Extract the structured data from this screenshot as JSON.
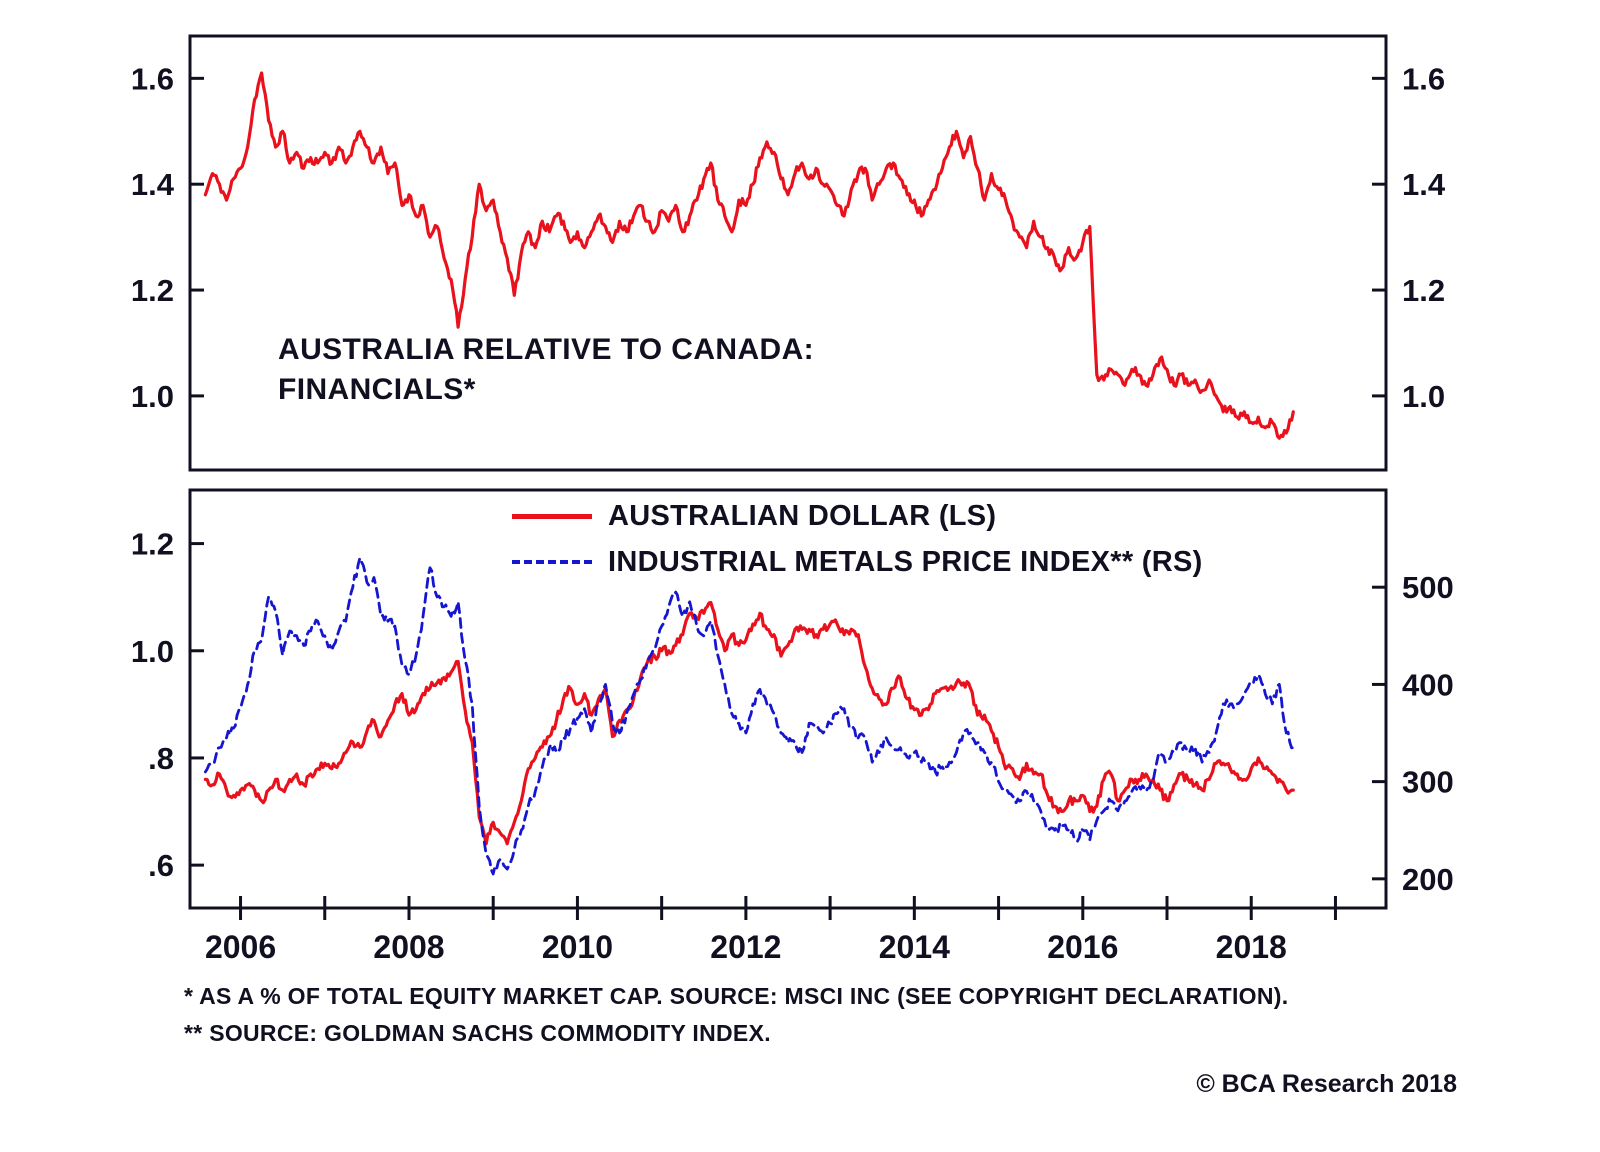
{
  "colors": {
    "red": "#e8111c",
    "blue": "#1616d0",
    "frame": "#101020",
    "text": "#101020"
  },
  "top_panel": {
    "title_line1": "AUSTRALIA RELATIVE TO CANADA:",
    "title_line2": "FINANCIALS*"
  },
  "legend": {
    "items": [
      {
        "label": "AUSTRALIAN DOLLAR (LS)",
        "style": "solid",
        "color": "#e8111c"
      },
      {
        "label": "INDUSTRIAL METALS PRICE INDEX** (RS)",
        "style": "dashed",
        "color": "#1616d0"
      }
    ]
  },
  "footnotes": {
    "line1": "*  AS A % OF TOTAL EQUITY MARKET CAP.  SOURCE: MSCI INC (SEE COPYRIGHT DECLARATION).",
    "line2": "** SOURCE: GOLDMAN SACHS COMMODITY INDEX."
  },
  "copyright": "© BCA Research 2018",
  "chart_data": [
    {
      "type": "line",
      "title": "AUSTRALIA RELATIVE TO CANADA: FINANCIALS*",
      "x_start": 2005.5833,
      "x_step_years": 0.083333,
      "xlim": [
        2005.4,
        2019.6
      ],
      "ylim": [
        0.86,
        1.68
      ],
      "yticks": [
        1.0,
        1.2,
        1.4,
        1.6
      ],
      "ytick_labels": [
        "1.0",
        "1.2",
        "1.4",
        "1.6"
      ],
      "grid": false,
      "legend_position": "none",
      "series": [
        {
          "name": "Australia relative to Canada: Financials (ratio)",
          "color": "#e8111c",
          "line": "solid",
          "values": [
            1.38,
            1.42,
            1.4,
            1.37,
            1.41,
            1.43,
            1.47,
            1.56,
            1.61,
            1.52,
            1.47,
            1.5,
            1.44,
            1.46,
            1.43,
            1.45,
            1.44,
            1.46,
            1.44,
            1.47,
            1.44,
            1.47,
            1.5,
            1.47,
            1.44,
            1.47,
            1.42,
            1.44,
            1.36,
            1.38,
            1.34,
            1.36,
            1.3,
            1.32,
            1.26,
            1.22,
            1.13,
            1.22,
            1.3,
            1.4,
            1.35,
            1.37,
            1.31,
            1.26,
            1.19,
            1.27,
            1.31,
            1.28,
            1.33,
            1.31,
            1.34,
            1.33,
            1.29,
            1.31,
            1.28,
            1.31,
            1.34,
            1.32,
            1.29,
            1.33,
            1.31,
            1.34,
            1.36,
            1.33,
            1.31,
            1.35,
            1.33,
            1.36,
            1.31,
            1.34,
            1.37,
            1.41,
            1.44,
            1.37,
            1.34,
            1.31,
            1.37,
            1.36,
            1.4,
            1.45,
            1.48,
            1.46,
            1.41,
            1.38,
            1.42,
            1.44,
            1.41,
            1.43,
            1.4,
            1.39,
            1.36,
            1.34,
            1.39,
            1.42,
            1.43,
            1.37,
            1.4,
            1.43,
            1.44,
            1.41,
            1.38,
            1.37,
            1.34,
            1.37,
            1.39,
            1.43,
            1.47,
            1.5,
            1.45,
            1.49,
            1.43,
            1.37,
            1.42,
            1.39,
            1.37,
            1.33,
            1.3,
            1.28,
            1.33,
            1.3,
            1.28,
            1.26,
            1.24,
            1.28,
            1.26,
            1.29,
            1.32,
            1.04,
            1.03,
            1.05,
            1.04,
            1.02,
            1.05,
            1.04,
            1.02,
            1.04,
            1.07,
            1.05,
            1.02,
            1.04,
            1.02,
            1.03,
            1.01,
            1.03,
            1.0,
            0.97,
            0.98,
            0.96,
            0.97,
            0.95,
            0.96,
            0.94,
            0.95,
            0.92,
            0.93,
            0.97
          ]
        }
      ]
    },
    {
      "type": "line",
      "title": "",
      "x_start": 2005.5833,
      "x_step_years": 0.083333,
      "xlim": [
        2005.4,
        2019.6
      ],
      "xticks": [
        2006,
        2007,
        2008,
        2009,
        2010,
        2011,
        2012,
        2013,
        2014,
        2015,
        2016,
        2017,
        2018,
        2019
      ],
      "xlabel_ticks": [
        2006,
        2008,
        2010,
        2012,
        2014,
        2016,
        2018
      ],
      "xtick_labels": [
        "2006",
        "2008",
        "2010",
        "2012",
        "2014",
        "2016",
        "2018"
      ],
      "grid": false,
      "legend_position": "top-inside",
      "left_axis": {
        "ylim": [
          0.52,
          1.3
        ],
        "ticks": [
          0.6,
          0.8,
          1.0,
          1.2
        ],
        "labels": [
          ".6",
          ".8",
          "1.0",
          "1.2"
        ]
      },
      "right_axis": {
        "ylim": [
          170,
          600
        ],
        "ticks": [
          200,
          300,
          400,
          500
        ],
        "labels": [
          "200",
          "300",
          "400",
          "500"
        ]
      },
      "series": [
        {
          "name": "AUSTRALIAN DOLLAR (LS)",
          "axis": "left",
          "color": "#e8111c",
          "line": "solid",
          "values": [
            0.76,
            0.75,
            0.77,
            0.74,
            0.73,
            0.74,
            0.75,
            0.74,
            0.72,
            0.74,
            0.76,
            0.74,
            0.76,
            0.77,
            0.75,
            0.77,
            0.78,
            0.79,
            0.78,
            0.79,
            0.81,
            0.83,
            0.82,
            0.85,
            0.87,
            0.84,
            0.87,
            0.9,
            0.92,
            0.88,
            0.89,
            0.92,
            0.93,
            0.94,
            0.95,
            0.96,
            0.98,
            0.89,
            0.83,
            0.69,
            0.64,
            0.68,
            0.66,
            0.64,
            0.68,
            0.72,
            0.78,
            0.8,
            0.82,
            0.84,
            0.87,
            0.91,
            0.93,
            0.9,
            0.92,
            0.88,
            0.91,
            0.93,
            0.84,
            0.87,
            0.89,
            0.91,
            0.95,
            0.98,
            0.99,
            1.0,
            1.0,
            1.01,
            1.03,
            1.07,
            1.06,
            1.07,
            1.09,
            1.04,
            1.0,
            1.03,
            1.01,
            1.02,
            1.05,
            1.07,
            1.04,
            1.03,
            0.99,
            1.01,
            1.04,
            1.04,
            1.04,
            1.03,
            1.04,
            1.05,
            1.05,
            1.03,
            1.04,
            1.03,
            0.97,
            0.93,
            0.91,
            0.9,
            0.93,
            0.95,
            0.91,
            0.89,
            0.88,
            0.89,
            0.92,
            0.93,
            0.93,
            0.94,
            0.94,
            0.93,
            0.88,
            0.88,
            0.85,
            0.82,
            0.78,
            0.78,
            0.76,
            0.79,
            0.77,
            0.77,
            0.73,
            0.71,
            0.7,
            0.72,
            0.72,
            0.73,
            0.7,
            0.71,
            0.76,
            0.77,
            0.72,
            0.74,
            0.76,
            0.76,
            0.77,
            0.76,
            0.74,
            0.72,
            0.75,
            0.77,
            0.76,
            0.75,
            0.74,
            0.76,
            0.79,
            0.79,
            0.78,
            0.77,
            0.76,
            0.78,
            0.8,
            0.78,
            0.77,
            0.76,
            0.74,
            0.74
          ]
        },
        {
          "name": "INDUSTRIAL METALS PRICE INDEX** (RS)",
          "axis": "right",
          "color": "#1616d0",
          "line": "dashed",
          "values": [
            310,
            320,
            335,
            345,
            355,
            375,
            400,
            435,
            445,
            490,
            475,
            430,
            455,
            450,
            440,
            455,
            465,
            450,
            435,
            455,
            465,
            500,
            530,
            505,
            510,
            470,
            465,
            460,
            420,
            410,
            430,
            470,
            520,
            490,
            480,
            470,
            485,
            425,
            380,
            275,
            225,
            205,
            220,
            210,
            230,
            250,
            275,
            290,
            315,
            335,
            330,
            345,
            355,
            365,
            375,
            350,
            380,
            400,
            360,
            350,
            370,
            390,
            405,
            425,
            435,
            460,
            480,
            495,
            470,
            485,
            460,
            450,
            465,
            430,
            400,
            370,
            360,
            350,
            380,
            395,
            380,
            370,
            350,
            340,
            340,
            330,
            360,
            355,
            350,
            360,
            370,
            375,
            355,
            345,
            345,
            320,
            330,
            345,
            335,
            335,
            325,
            330,
            320,
            320,
            310,
            315,
            320,
            330,
            350,
            350,
            340,
            330,
            320,
            300,
            290,
            285,
            280,
            290,
            280,
            270,
            255,
            250,
            255,
            250,
            240,
            250,
            240,
            260,
            270,
            280,
            270,
            280,
            290,
            295,
            290,
            300,
            330,
            320,
            330,
            340,
            330,
            335,
            320,
            330,
            350,
            380,
            380,
            380,
            390,
            400,
            410,
            390,
            380,
            400,
            350,
            335
          ]
        }
      ]
    }
  ]
}
